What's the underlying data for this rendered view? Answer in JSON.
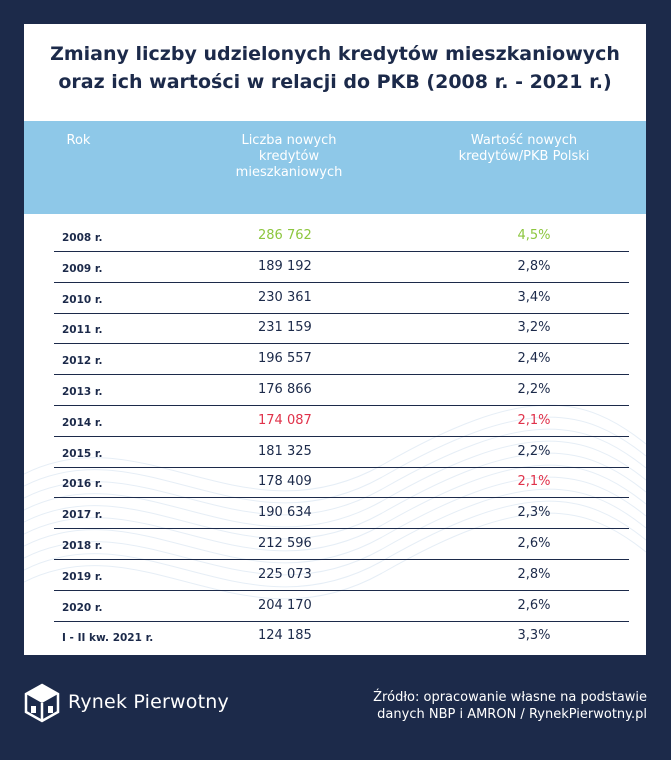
{
  "chart_data": {
    "type": "table",
    "title_lines": [
      "Zmiany liczby udzielonych kredytów mieszkaniowych",
      "oraz ich wartości w relacji do PKB (2008 r. - 2021 r.)"
    ],
    "columns": [
      "Rok",
      "Liczba nowych kredytów mieszkaniowych",
      "Wartość nowych kredytów/PKB Polski"
    ],
    "column_label_lines": {
      "year": [
        "Rok"
      ],
      "count": [
        "Liczba nowych",
        "kredytów",
        "mieszkaniowych"
      ],
      "ratio": [
        "Wartość nowych",
        "kredytów/PKB Polski"
      ]
    },
    "rows": [
      {
        "year": "2008 r.",
        "count": "286 762",
        "ratio": "4,5%",
        "count_color": "green",
        "ratio_color": "green"
      },
      {
        "year": "2009 r.",
        "count": "189 192",
        "ratio": "2,8%",
        "count_color": "",
        "ratio_color": ""
      },
      {
        "year": "2010 r.",
        "count": "230 361",
        "ratio": "3,4%",
        "count_color": "",
        "ratio_color": ""
      },
      {
        "year": "2011 r.",
        "count": "231 159",
        "ratio": "3,2%",
        "count_color": "",
        "ratio_color": ""
      },
      {
        "year": "2012 r.",
        "count": "196 557",
        "ratio": "2,4%",
        "count_color": "",
        "ratio_color": ""
      },
      {
        "year": "2013 r.",
        "count": "176 866",
        "ratio": "2,2%",
        "count_color": "",
        "ratio_color": ""
      },
      {
        "year": "2014 r.",
        "count": "174 087",
        "ratio": "2,1%",
        "count_color": "red",
        "ratio_color": "red"
      },
      {
        "year": "2015 r.",
        "count": "181 325",
        "ratio": "2,2%",
        "count_color": "",
        "ratio_color": ""
      },
      {
        "year": "2016 r.",
        "count": "178 409",
        "ratio": "2,1%",
        "count_color": "",
        "ratio_color": "red"
      },
      {
        "year": "2017 r.",
        "count": "190 634",
        "ratio": "2,3%",
        "count_color": "",
        "ratio_color": ""
      },
      {
        "year": "2018 r.",
        "count": "212 596",
        "ratio": "2,6%",
        "count_color": "",
        "ratio_color": ""
      },
      {
        "year": "2019 r.",
        "count": "225 073",
        "ratio": "2,8%",
        "count_color": "",
        "ratio_color": ""
      },
      {
        "year": "2020 r.",
        "count": "204 170",
        "ratio": "2,6%",
        "count_color": "",
        "ratio_color": ""
      },
      {
        "year": "I - II kw. 2021 r.",
        "count": "124 185",
        "ratio": "3,3%",
        "count_color": "",
        "ratio_color": ""
      }
    ],
    "colors": {
      "background": "#1c2a4a",
      "header": "#8ec8e8",
      "highest": "#8dc63f",
      "lowest": "#e0324a"
    }
  },
  "footer": {
    "brand": "Rynek Pierwotny",
    "source_lines": [
      "Źródło: opracowanie własne na podstawie",
      "danych NBP i AMRON / RynekPierwotny.pl"
    ]
  },
  "icons": {
    "logo": "rynek-pierwotny-logo-icon"
  }
}
